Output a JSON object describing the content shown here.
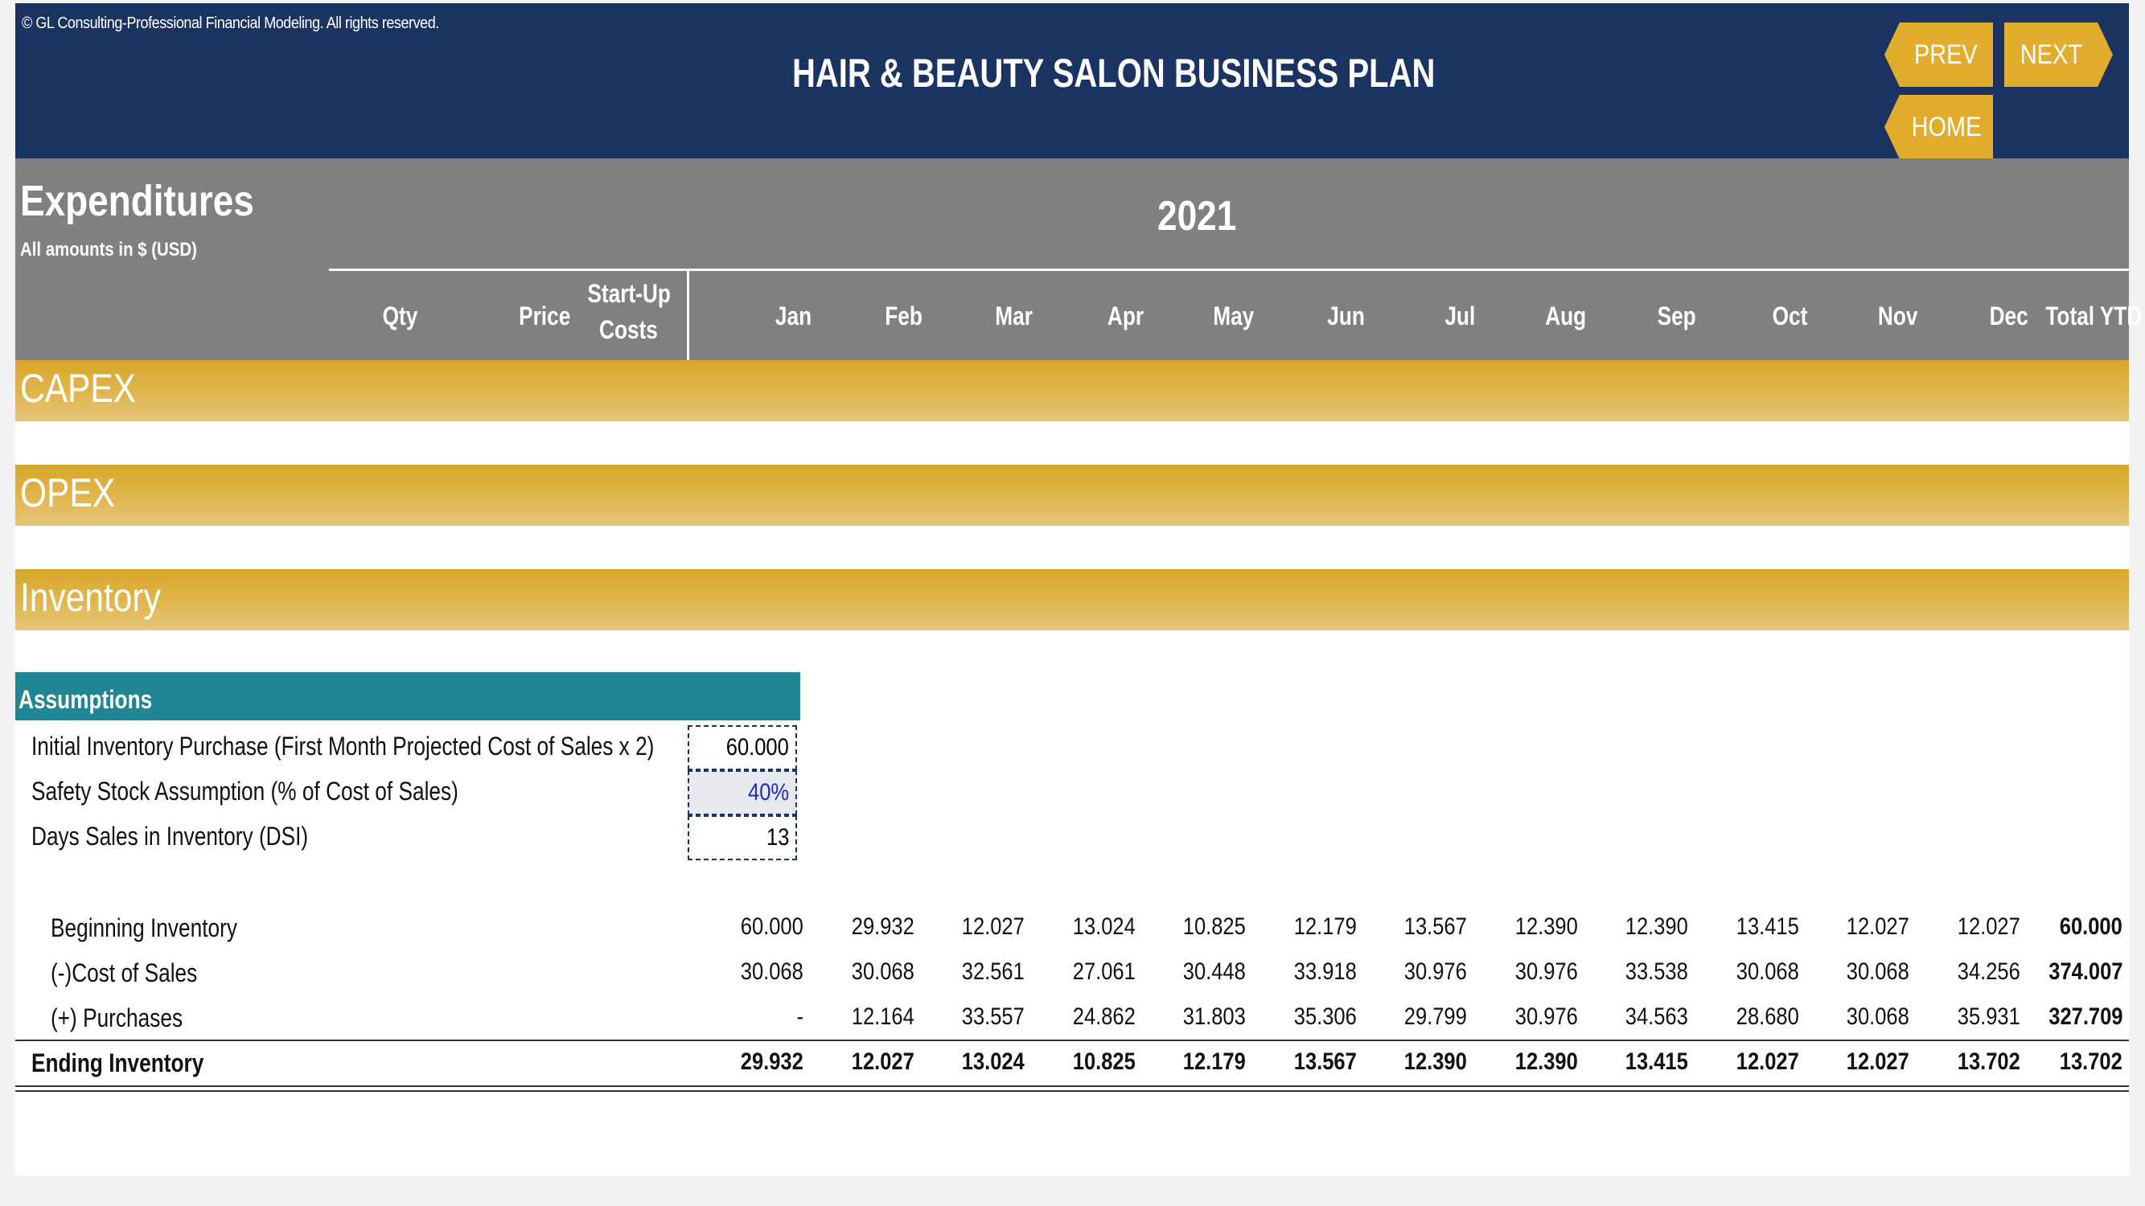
{
  "header": {
    "copyright": "© GL Consulting-Professional Financial Modeling. All rights reserved.",
    "title": "HAIR & BEAUTY SALON BUSINESS PLAN",
    "prev_label": "PREV",
    "next_label": "NEXT",
    "home_label": "HOME"
  },
  "colors": {
    "navy": "#1b3360",
    "gold": "#e2ad2d",
    "grey": "#808080",
    "teal": "#1f8794"
  },
  "section": {
    "title": "Expenditures",
    "subtitle": "All amounts in $ (USD)",
    "year": "2021"
  },
  "columns": {
    "qty": "Qty",
    "price": "Price",
    "startup_line1": "Start-Up",
    "startup_line2": "Costs",
    "months": [
      "Jan",
      "Feb",
      "Mar",
      "Apr",
      "May",
      "Jun",
      "Jul",
      "Aug",
      "Sep",
      "Oct",
      "Nov",
      "Dec"
    ],
    "total": "Total YTD"
  },
  "bars": {
    "capex": "CAPEX",
    "opex": "OPEX",
    "inventory": "Inventory"
  },
  "assumptions": {
    "header": "Assumptions",
    "rows": [
      {
        "label": "Initial Inventory Purchase (First Month Projected Cost of Sales x 2)",
        "value": "60.000"
      },
      {
        "label": "Safety Stock Assumption (% of Cost of Sales)",
        "value": "40%"
      },
      {
        "label": "Days Sales in Inventory (DSI)",
        "value": "13"
      }
    ]
  },
  "schedule": {
    "rows": [
      {
        "label": "Beginning Inventory",
        "values": [
          "60.000",
          "29.932",
          "12.027",
          "13.024",
          "10.825",
          "12.179",
          "13.567",
          "12.390",
          "12.390",
          "13.415",
          "12.027",
          "12.027"
        ],
        "total": "60.000"
      },
      {
        "label": "(-)Cost of Sales",
        "values": [
          "30.068",
          "30.068",
          "32.561",
          "27.061",
          "30.448",
          "33.918",
          "30.976",
          "30.976",
          "33.538",
          "30.068",
          "30.068",
          "34.256"
        ],
        "total": "374.007"
      },
      {
        "label": "(+) Purchases",
        "values": [
          "-",
          "12.164",
          "33.557",
          "24.862",
          "31.803",
          "35.306",
          "29.799",
          "30.976",
          "34.563",
          "28.680",
          "30.068",
          "35.931"
        ],
        "total": "327.709"
      },
      {
        "label": "Ending Inventory",
        "values": [
          "29.932",
          "12.027",
          "13.024",
          "10.825",
          "12.179",
          "13.567",
          "12.390",
          "12.390",
          "13.415",
          "12.027",
          "12.027",
          "13.702"
        ],
        "total": "13.702"
      }
    ]
  }
}
